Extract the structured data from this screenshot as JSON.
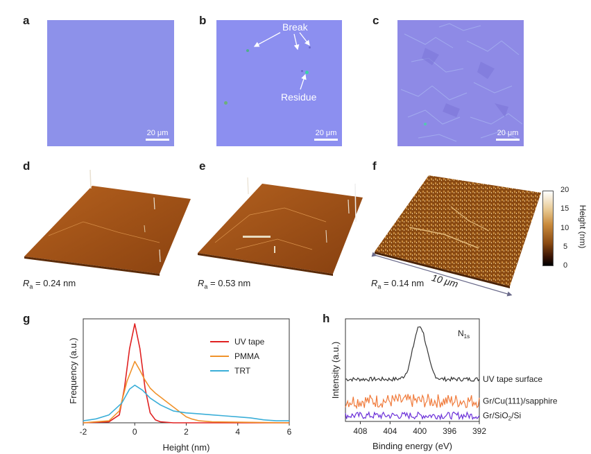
{
  "panels": [
    "a",
    "b",
    "c",
    "d",
    "e",
    "f",
    "g",
    "h"
  ],
  "micrographs": {
    "scale_label": "20 μm",
    "b_annotations": {
      "break": "Break",
      "residue": "Residue"
    }
  },
  "afm": {
    "d_ra": {
      "symbol": "R",
      "sub": "a",
      "value": " = 0.24 nm"
    },
    "e_ra": {
      "symbol": "R",
      "sub": "a",
      "value": " = 0.53 nm"
    },
    "f_ra": {
      "symbol": "R",
      "sub": "a",
      "value": " = 0.14 nm"
    },
    "size_label": "10 μm",
    "colorbar": {
      "label": "Height (nm)",
      "ticks": [
        "20",
        "15",
        "10",
        "5",
        "0"
      ],
      "max": 20,
      "min": 0
    }
  },
  "chart_data": [
    {
      "type": "line",
      "title": "",
      "xlabel": "Height (nm)",
      "ylabel": "Frequency (a.u.)",
      "xlim": [
        -2,
        6
      ],
      "ylim": [
        0,
        1.05
      ],
      "x_ticks": [
        "-2",
        "0",
        "2",
        "4",
        "6"
      ],
      "series": [
        {
          "name": "UV tape",
          "color": "#e02020",
          "x": [
            -2,
            -1,
            -0.6,
            -0.4,
            -0.2,
            0,
            0.2,
            0.4,
            0.6,
            0.8,
            1,
            1.5,
            2,
            6
          ],
          "y": [
            0,
            0.01,
            0.08,
            0.35,
            0.75,
            1.0,
            0.75,
            0.35,
            0.1,
            0.03,
            0.01,
            0,
            0,
            0
          ]
        },
        {
          "name": "PMMA",
          "color": "#f0922a",
          "x": [
            -2,
            -1,
            -0.6,
            -0.3,
            0,
            0.2,
            0.4,
            0.6,
            0.8,
            1,
            1.2,
            1.5,
            1.8,
            2,
            2.2,
            2.5,
            3,
            6
          ],
          "y": [
            0,
            0.02,
            0.12,
            0.42,
            0.62,
            0.53,
            0.43,
            0.35,
            0.3,
            0.26,
            0.22,
            0.16,
            0.1,
            0.06,
            0.04,
            0.02,
            0.01,
            0
          ]
        },
        {
          "name": "TRT",
          "color": "#3aaed8",
          "x": [
            -2,
            -1.5,
            -1,
            -0.5,
            -0.2,
            0,
            0.3,
            0.6,
            1,
            1.5,
            2,
            2.5,
            3,
            3.5,
            4,
            4.5,
            5,
            5.5,
            6
          ],
          "y": [
            0.02,
            0.04,
            0.08,
            0.2,
            0.34,
            0.38,
            0.33,
            0.25,
            0.18,
            0.12,
            0.1,
            0.09,
            0.08,
            0.07,
            0.06,
            0.05,
            0.03,
            0.02,
            0.02
          ]
        }
      ]
    },
    {
      "type": "line",
      "title": "",
      "xlabel": "Binding energy (eV)",
      "ylabel": "Intensity (a.u.)",
      "xlim": [
        410,
        392
      ],
      "x_ticks": [
        "408",
        "404",
        "400",
        "396",
        "392"
      ],
      "annotation": {
        "main": "N",
        "sub": "1s"
      },
      "series": [
        {
          "name": "UV tape surface",
          "color": "#333333",
          "baseline": 0.72,
          "peak_center": 400,
          "peak_height": 0.9,
          "peak_width": 0.9,
          "noise": 0.035
        },
        {
          "name": "Gr/Cu(111)/sapphire",
          "color": "#f07a3a",
          "baseline": 0.35,
          "noise": 0.12
        },
        {
          "name": "Gr/SiO",
          "sub": "2",
          "suffix": "/Si",
          "color": "#6a2fd8",
          "baseline": 0.1,
          "noise": 0.06
        }
      ]
    }
  ]
}
